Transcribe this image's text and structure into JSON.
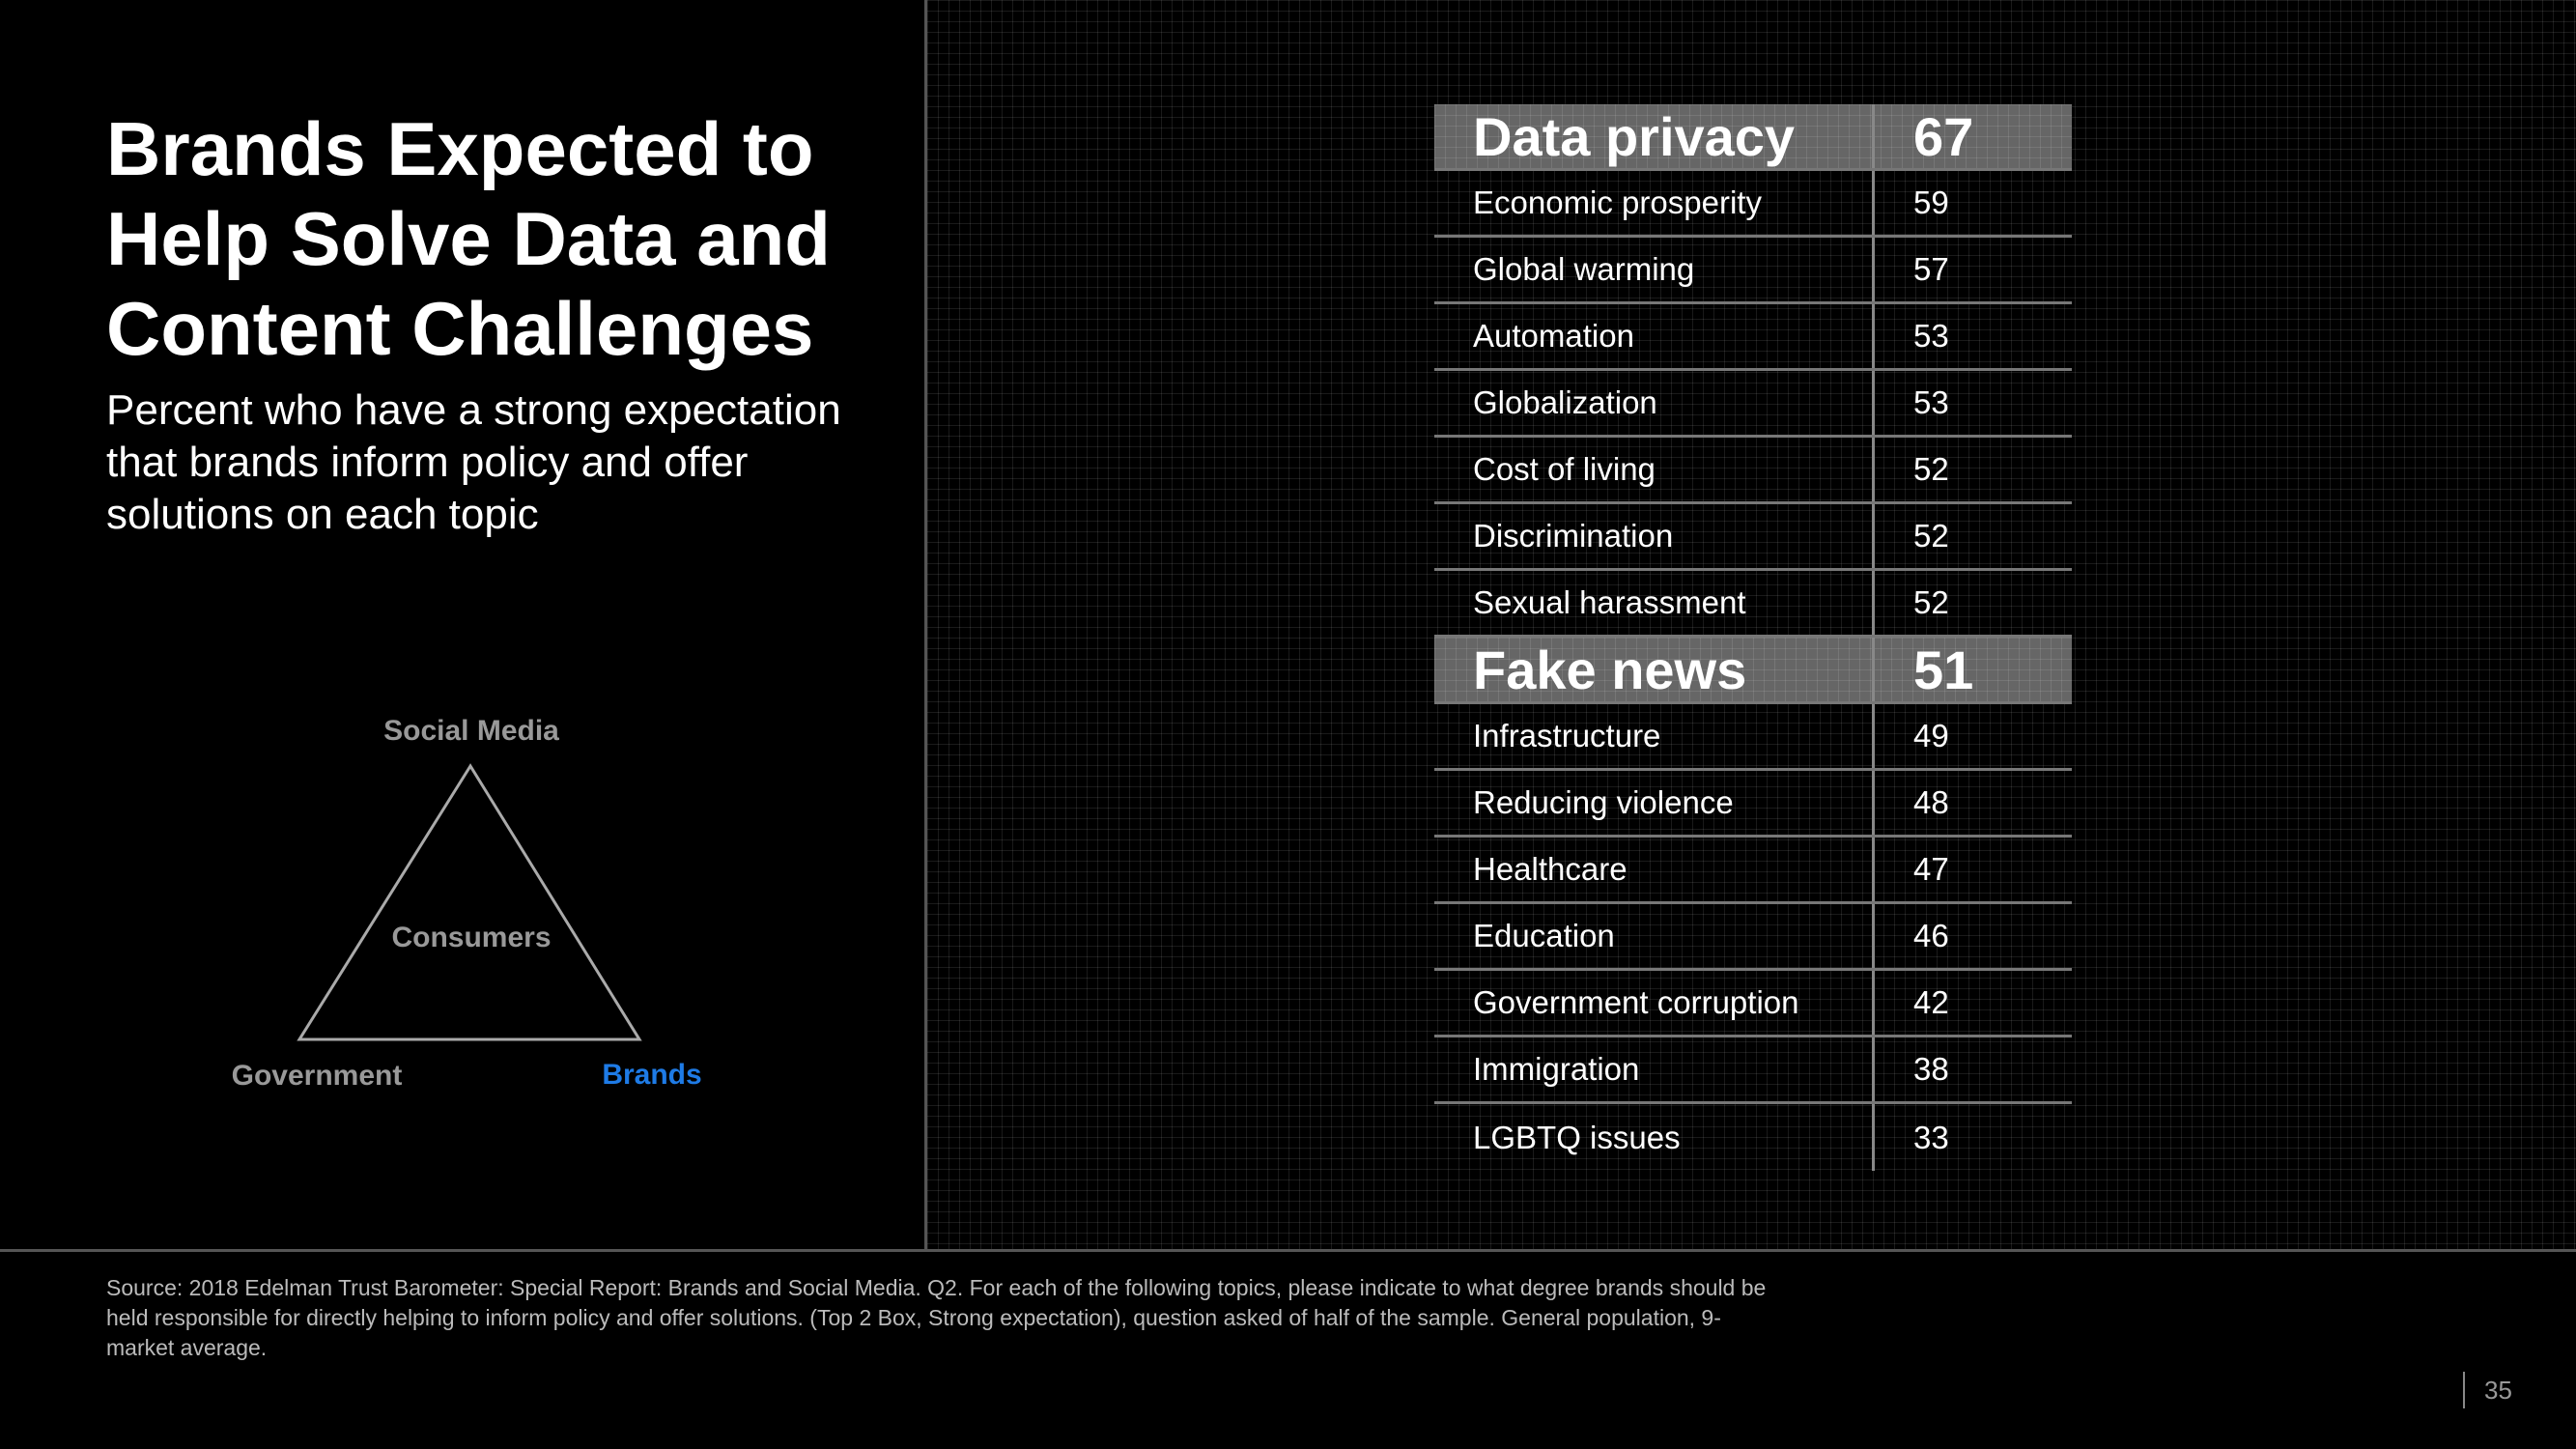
{
  "slide": {
    "title": "Brands Expected to Help Solve Data and Content Challenges",
    "subtitle": "Percent who have a strong expectation that brands inform policy and offer solutions on each topic",
    "source": "Source: 2018 Edelman Trust Barometer: Special Report: Brands and Social Media. Q2. For each of the following topics, please indicate to what degree brands should be held responsible for directly helping to inform policy and offer solutions. (Top 2 Box, Strong expectation), question asked of half of the sample. General population, 9-market average.",
    "page_number": "35"
  },
  "diagram": {
    "top_label": "Social Media",
    "center_label": "Consumers",
    "left_label": "Government",
    "right_label": "Brands",
    "right_label_color": "#1e7be6"
  },
  "table": {
    "rows": [
      {
        "topic": "Data privacy",
        "value": "67",
        "highlight": true
      },
      {
        "topic": "Economic prosperity",
        "value": "59",
        "highlight": false
      },
      {
        "topic": "Global warming",
        "value": "57",
        "highlight": false
      },
      {
        "topic": "Automation",
        "value": "53",
        "highlight": false
      },
      {
        "topic": "Globalization",
        "value": "53",
        "highlight": false
      },
      {
        "topic": "Cost of living",
        "value": "52",
        "highlight": false
      },
      {
        "topic": "Discrimination",
        "value": "52",
        "highlight": false
      },
      {
        "topic": "Sexual harassment",
        "value": "52",
        "highlight": false
      },
      {
        "topic": "Fake news",
        "value": "51",
        "highlight": true
      },
      {
        "topic": "Infrastructure",
        "value": "49",
        "highlight": false
      },
      {
        "topic": "Reducing violence",
        "value": "48",
        "highlight": false
      },
      {
        "topic": "Healthcare",
        "value": "47",
        "highlight": false
      },
      {
        "topic": "Education",
        "value": "46",
        "highlight": false
      },
      {
        "topic": "Government corruption",
        "value": "42",
        "highlight": false
      },
      {
        "topic": "Immigration",
        "value": "38",
        "highlight": false
      },
      {
        "topic": "LGBTQ issues",
        "value": "33",
        "highlight": false
      }
    ]
  }
}
